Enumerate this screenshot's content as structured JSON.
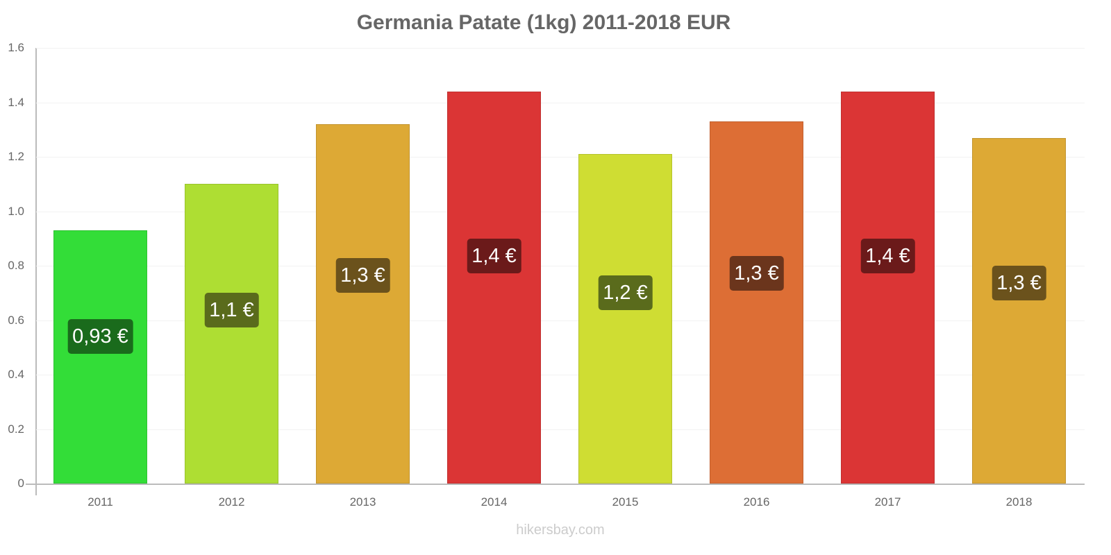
{
  "chart_data": {
    "type": "bar",
    "title": "Germania Patate (1kg) 2011-2018 EUR",
    "xlabel": "",
    "ylabel": "",
    "ylim": [
      0,
      1.6
    ],
    "yticks": [
      "0",
      "0.2",
      "0.4",
      "0.6",
      "0.8",
      "1.0",
      "1.2",
      "1.4",
      "1.6"
    ],
    "grid": true,
    "legend": null,
    "categories": [
      "2011",
      "2012",
      "2013",
      "2014",
      "2015",
      "2016",
      "2017",
      "2018"
    ],
    "values": [
      0.93,
      1.1,
      1.32,
      1.44,
      1.21,
      1.33,
      1.44,
      1.27
    ],
    "data_labels": [
      "0,93 €",
      "1,1 €",
      "1,3 €",
      "1,4 €",
      "1,2 €",
      "1,3 €",
      "1,4 €",
      "1,3 €"
    ],
    "bar_colors": [
      "#33dd38",
      "#aede33",
      "#dda935",
      "#db3535",
      "#cfdd33",
      "#dd6e35",
      "#db3535",
      "#dda935"
    ],
    "label_colors": [
      "#1a6b1c",
      "#5a6b1c",
      "#6b521c",
      "#6b1a1a",
      "#5a6b1c",
      "#6b351c",
      "#6b1a1a",
      "#6b521c"
    ]
  },
  "watermark": "hikersbay.com"
}
